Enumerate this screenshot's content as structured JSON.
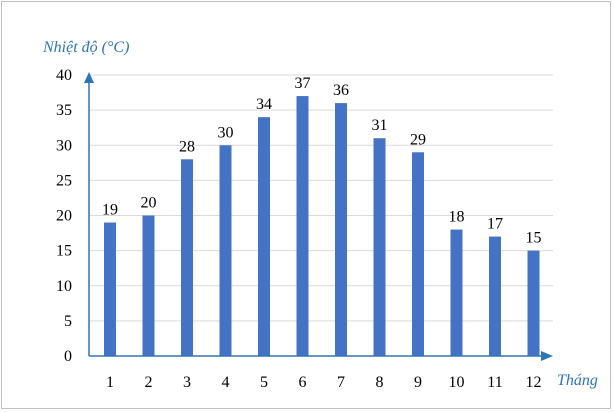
{
  "chart_data": {
    "type": "bar",
    "ylabel": "Nhiệt độ (°C)",
    "xlabel": "Tháng",
    "categories": [
      "1",
      "2",
      "3",
      "4",
      "5",
      "6",
      "7",
      "8",
      "9",
      "10",
      "11",
      "12"
    ],
    "values": [
      19,
      20,
      28,
      30,
      34,
      37,
      36,
      31,
      29,
      18,
      17,
      15
    ],
    "data_labels": [
      "19",
      "20",
      "28",
      "30",
      "34",
      "37",
      "36",
      "31",
      "29",
      "18",
      "17",
      "15"
    ],
    "y_ticks": [
      "0",
      "5",
      "10",
      "15",
      "20",
      "25",
      "30",
      "35",
      "40"
    ],
    "ylim": [
      0,
      40
    ],
    "grid": true,
    "bar_color": "#4472c4",
    "axis_color": "#2e75b6",
    "grid_color": "#d9d9d9"
  }
}
